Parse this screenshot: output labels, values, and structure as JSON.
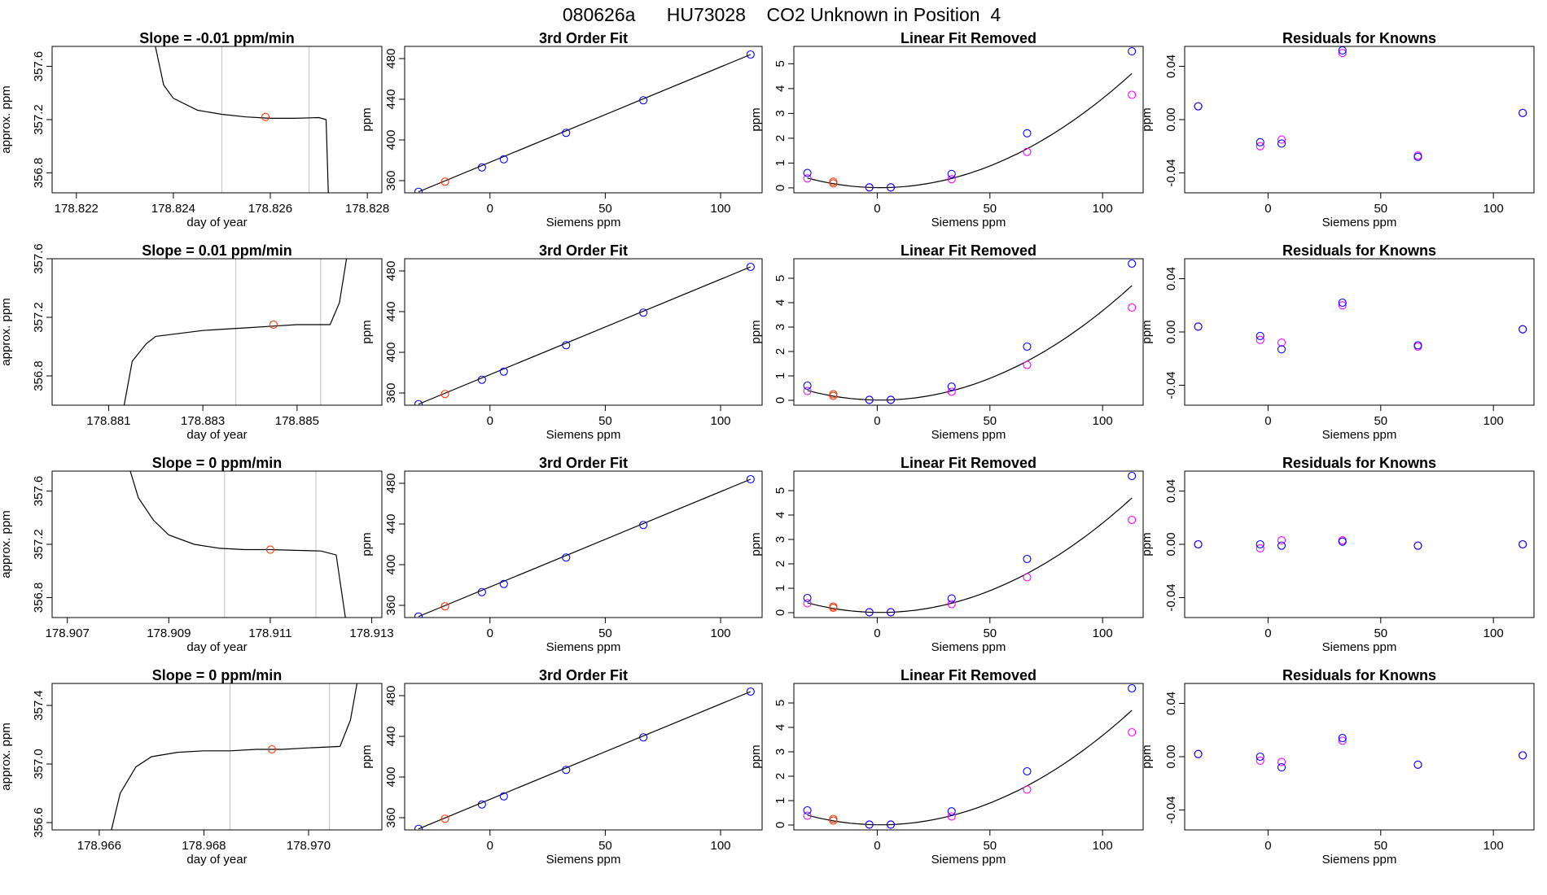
{
  "page_title": "080626a      HU73028    CO2 Unknown in Position  4",
  "colors": {
    "known_points": "#0000ff",
    "residual_points": "#ff00ff",
    "unknown_point": "#ff3300",
    "line": "#000000",
    "vertical_markers": "#bfbfbf"
  },
  "chart_data": [
    {
      "type": "line",
      "title": "Slope =  -0.01  ppm/min",
      "xlabel": "day of year",
      "ylabel": "approx. ppm",
      "xlim": [
        178.8215,
        178.8283
      ],
      "ylim": [
        356.65,
        357.75
      ],
      "xticks": [
        178.822,
        178.824,
        178.826,
        178.828
      ],
      "xtick_labels": [
        "178.822",
        "178.824",
        "178.826",
        "178.828"
      ],
      "yticks": [
        356.8,
        357.2,
        357.6
      ],
      "ytick_labels": [
        "356.8",
        "357.2",
        "357.6"
      ],
      "vlines": [
        178.825,
        178.8268
      ],
      "trace": {
        "x": [
          178.8236,
          178.8238,
          178.824,
          178.8245,
          178.825,
          178.8255,
          178.826,
          178.8265,
          178.827,
          178.82715,
          178.8272
        ],
        "y": [
          357.8,
          357.46,
          357.36,
          357.27,
          357.24,
          357.22,
          357.21,
          357.21,
          357.215,
          357.2,
          356.6
        ]
      },
      "unknown_point": {
        "x": 178.8259,
        "y": 357.22
      }
    },
    {
      "type": "scatter",
      "title": "3rd Order Fit",
      "xlabel": "Siemens ppm",
      "ylabel": "ppm",
      "xlim": [
        -37,
        118
      ],
      "ylim": [
        348,
        492
      ],
      "xticks": [
        0,
        50,
        100
      ],
      "xtick_labels": [
        "0",
        "50",
        "100"
      ],
      "yticks": [
        360,
        400,
        440,
        480
      ],
      "ytick_labels": [
        "360",
        "400",
        "440",
        "480"
      ],
      "known": {
        "x": [
          -31,
          -3.5,
          6,
          33,
          66.5,
          113
        ],
        "y": [
          349,
          373,
          381,
          407,
          439,
          484
        ]
      },
      "unknown": {
        "x": [
          -19.5
        ],
        "y": [
          359
        ]
      },
      "fit": {
        "x": [
          -31,
          113
        ],
        "y": [
          349,
          484
        ]
      }
    },
    {
      "type": "scatter",
      "title": "Linear Fit Removed",
      "xlabel": "Siemens ppm",
      "ylabel": "ppm",
      "xlim": [
        -37,
        118
      ],
      "ylim": [
        -0.2,
        5.7
      ],
      "xticks": [
        0,
        50,
        100
      ],
      "xtick_labels": [
        "0",
        "50",
        "100"
      ],
      "yticks": [
        0,
        1,
        2,
        3,
        4,
        5
      ],
      "ytick_labels": [
        "0",
        "1",
        "2",
        "3",
        "4",
        "5"
      ],
      "known": {
        "x": [
          -31,
          -3.5,
          6,
          33,
          66.5,
          113
        ],
        "y": [
          0.6,
          0.02,
          0.02,
          0.56,
          2.2,
          5.5
        ]
      },
      "residual": {
        "x": [
          -31,
          -3.5,
          6,
          33,
          66.5,
          113
        ],
        "y": [
          0.38,
          0.02,
          0.02,
          0.35,
          1.45,
          3.75
        ]
      },
      "unknown": {
        "x": [
          -19.5,
          -19.5
        ],
        "y": [
          0.25,
          0.18
        ]
      },
      "curve": {
        "a": 0.000369,
        "b": -0.001,
        "c": 0.01
      }
    },
    {
      "type": "scatter",
      "title": "Residuals for Knowns",
      "xlabel": "Siemens ppm",
      "ylabel": "ppm",
      "xlim": [
        -37,
        118
      ],
      "ylim": [
        -0.055,
        0.055
      ],
      "xticks": [
        0,
        50,
        100
      ],
      "xtick_labels": [
        "0",
        "50",
        "100"
      ],
      "yticks": [
        -0.04,
        0,
        0.04
      ],
      "ytick_labels": [
        "-0.04",
        "0.00",
        "0.04"
      ],
      "known": {
        "x": [
          -31,
          -3.5,
          6,
          33,
          66.5,
          113
        ],
        "y": [
          0.01,
          -0.017,
          -0.018,
          0.052,
          -0.028,
          0.005
        ]
      },
      "residual": {
        "x": [
          -31,
          -3.5,
          6,
          33,
          66.5,
          113
        ],
        "y": [
          0.01,
          -0.02,
          -0.015,
          0.05,
          -0.027,
          0.005
        ]
      }
    },
    {
      "type": "line",
      "title": "Slope =  0.01  ppm/min",
      "xlabel": "day of year",
      "ylabel": "approx. ppm",
      "xlim": [
        178.8798,
        178.8868
      ],
      "ylim": [
        356.6,
        357.6
      ],
      "xticks": [
        178.881,
        178.883,
        178.885
      ],
      "xtick_labels": [
        "178.881",
        "178.883",
        "178.885"
      ],
      "yticks": [
        356.8,
        357.2,
        357.6
      ],
      "ytick_labels": [
        "356.8",
        "357.2",
        "357.6"
      ],
      "vlines": [
        178.8837,
        178.8855
      ],
      "trace": {
        "x": [
          178.8813,
          178.8815,
          178.8818,
          178.882,
          178.8825,
          178.883,
          178.8835,
          178.884,
          178.8845,
          178.885,
          178.8857,
          178.8859,
          178.8861
        ],
        "y": [
          356.55,
          356.9,
          357.02,
          357.07,
          357.09,
          357.11,
          357.12,
          357.13,
          357.14,
          357.15,
          357.15,
          357.3,
          357.7
        ]
      },
      "unknown_point": {
        "x": 178.8845,
        "y": 357.15
      }
    },
    {
      "type": "scatter",
      "title": "3rd Order Fit",
      "xlabel": "Siemens ppm",
      "ylabel": "ppm",
      "xlim": [
        -37,
        118
      ],
      "ylim": [
        348,
        492
      ],
      "xticks": [
        0,
        50,
        100
      ],
      "xtick_labels": [
        "0",
        "50",
        "100"
      ],
      "yticks": [
        360,
        400,
        440,
        480
      ],
      "ytick_labels": [
        "360",
        "400",
        "440",
        "480"
      ],
      "known": {
        "x": [
          -31,
          -3.5,
          6,
          33,
          66.5,
          113
        ],
        "y": [
          349,
          373,
          381,
          407,
          439,
          484
        ]
      },
      "unknown": {
        "x": [
          -19.5
        ],
        "y": [
          359
        ]
      },
      "fit": {
        "x": [
          -31,
          113
        ],
        "y": [
          349,
          484
        ]
      }
    },
    {
      "type": "scatter",
      "title": "Linear Fit Removed",
      "xlabel": "Siemens ppm",
      "ylabel": "ppm",
      "xlim": [
        -37,
        118
      ],
      "ylim": [
        -0.2,
        5.8
      ],
      "xticks": [
        0,
        50,
        100
      ],
      "xtick_labels": [
        "0",
        "50",
        "100"
      ],
      "yticks": [
        0,
        1,
        2,
        3,
        4,
        5
      ],
      "ytick_labels": [
        "0",
        "1",
        "2",
        "3",
        "4",
        "5"
      ],
      "known": {
        "x": [
          -31,
          -3.5,
          6,
          33,
          66.5,
          113
        ],
        "y": [
          0.6,
          0.02,
          0.02,
          0.56,
          2.2,
          5.6
        ]
      },
      "residual": {
        "x": [
          -31,
          -3.5,
          6,
          33,
          66.5,
          113
        ],
        "y": [
          0.38,
          0.02,
          0.02,
          0.35,
          1.45,
          3.8
        ]
      },
      "unknown": {
        "x": [
          -19.5,
          -19.5
        ],
        "y": [
          0.25,
          0.18
        ]
      },
      "curve": {
        "a": 0.000376,
        "b": -0.001,
        "c": 0.01
      }
    },
    {
      "type": "scatter",
      "title": "Residuals for Knowns",
      "xlabel": "Siemens ppm",
      "ylabel": "ppm",
      "xlim": [
        -37,
        118
      ],
      "ylim": [
        -0.055,
        0.055
      ],
      "xticks": [
        0,
        50,
        100
      ],
      "xtick_labels": [
        "0",
        "50",
        "100"
      ],
      "yticks": [
        -0.04,
        0,
        0.04
      ],
      "ytick_labels": [
        "-0.04",
        "0.00",
        "0.04"
      ],
      "known": {
        "x": [
          -31,
          -3.5,
          6,
          33,
          66.5,
          113
        ],
        "y": [
          0.004,
          -0.003,
          -0.013,
          0.022,
          -0.01,
          0.002
        ]
      },
      "residual": {
        "x": [
          -31,
          -3.5,
          6,
          33,
          66.5,
          113
        ],
        "y": [
          0.004,
          -0.006,
          -0.008,
          0.02,
          -0.011,
          0.002
        ]
      }
    },
    {
      "type": "line",
      "title": "Slope =  0  ppm/min",
      "xlabel": "day of year",
      "ylabel": "approx. ppm",
      "xlim": [
        178.9067,
        178.9132
      ],
      "ylim": [
        356.65,
        357.75
      ],
      "xticks": [
        178.907,
        178.909,
        178.911,
        178.913
      ],
      "xtick_labels": [
        "178.907",
        "178.909",
        "178.911",
        "178.913"
      ],
      "yticks": [
        356.8,
        357.2,
        357.6
      ],
      "ytick_labels": [
        "356.8",
        "357.2",
        "357.6"
      ],
      "vlines": [
        178.9101,
        178.9119
      ],
      "trace": {
        "x": [
          178.9082,
          178.9084,
          178.9087,
          178.909,
          178.9095,
          178.91,
          178.9105,
          178.911,
          178.9115,
          178.912,
          178.9123,
          178.9125
        ],
        "y": [
          357.8,
          357.55,
          357.38,
          357.27,
          357.2,
          357.17,
          357.16,
          357.16,
          357.155,
          357.15,
          357.12,
          356.6
        ]
      },
      "unknown_point": {
        "x": 178.911,
        "y": 357.16
      }
    },
    {
      "type": "scatter",
      "title": "3rd Order Fit",
      "xlabel": "Siemens ppm",
      "ylabel": "ppm",
      "xlim": [
        -37,
        118
      ],
      "ylim": [
        348,
        492
      ],
      "xticks": [
        0,
        50,
        100
      ],
      "xtick_labels": [
        "0",
        "50",
        "100"
      ],
      "yticks": [
        360,
        400,
        440,
        480
      ],
      "ytick_labels": [
        "360",
        "400",
        "440",
        "480"
      ],
      "known": {
        "x": [
          -31,
          -3.5,
          6,
          33,
          66.5,
          113
        ],
        "y": [
          349,
          373,
          381,
          407,
          439,
          484
        ]
      },
      "unknown": {
        "x": [
          -19.5
        ],
        "y": [
          359
        ]
      },
      "fit": {
        "x": [
          -31,
          113
        ],
        "y": [
          349,
          484
        ]
      }
    },
    {
      "type": "scatter",
      "title": "Linear Fit Removed",
      "xlabel": "Siemens ppm",
      "ylabel": "ppm",
      "xlim": [
        -37,
        118
      ],
      "ylim": [
        -0.2,
        5.8
      ],
      "xticks": [
        0,
        50,
        100
      ],
      "xtick_labels": [
        "0",
        "50",
        "100"
      ],
      "yticks": [
        0,
        1,
        2,
        3,
        4,
        5
      ],
      "ytick_labels": [
        "0",
        "1",
        "2",
        "3",
        "4",
        "5"
      ],
      "known": {
        "x": [
          -31,
          -3.5,
          6,
          33,
          66.5,
          113
        ],
        "y": [
          0.6,
          0.02,
          0.02,
          0.58,
          2.2,
          5.6
        ]
      },
      "residual": {
        "x": [
          -31,
          -3.5,
          6,
          33,
          66.5,
          113
        ],
        "y": [
          0.38,
          0.02,
          0.02,
          0.35,
          1.45,
          3.8
        ]
      },
      "unknown": {
        "x": [
          -19.5,
          -19.5
        ],
        "y": [
          0.25,
          0.2
        ]
      },
      "curve": {
        "a": 0.000376,
        "b": -0.001,
        "c": 0.01
      }
    },
    {
      "type": "scatter",
      "title": "Residuals for Knowns",
      "xlabel": "Siemens ppm",
      "ylabel": "ppm",
      "xlim": [
        -37,
        118
      ],
      "ylim": [
        -0.055,
        0.055
      ],
      "xticks": [
        0,
        50,
        100
      ],
      "xtick_labels": [
        "0",
        "50",
        "100"
      ],
      "yticks": [
        -0.04,
        0,
        0.04
      ],
      "ytick_labels": [
        "-0.04",
        "0.00",
        "0.04"
      ],
      "known": {
        "x": [
          -31,
          -3.5,
          6,
          33,
          66.5,
          113
        ],
        "y": [
          0.0,
          0.0,
          -0.001,
          0.002,
          -0.001,
          0.0
        ]
      },
      "residual": {
        "x": [
          -31,
          -3.5,
          6,
          33,
          66.5,
          113
        ],
        "y": [
          0.0,
          -0.003,
          0.003,
          0.003,
          -0.001,
          0.0
        ]
      }
    },
    {
      "type": "line",
      "title": "Slope =  0  ppm/min",
      "xlabel": "day of year",
      "ylabel": "approx. ppm",
      "xlim": [
        178.9651,
        178.9714
      ],
      "ylim": [
        356.55,
        357.55
      ],
      "xticks": [
        178.966,
        178.968,
        178.97
      ],
      "xtick_labels": [
        "178.966",
        "178.968",
        "178.970"
      ],
      "yticks": [
        356.6,
        357.0,
        357.4
      ],
      "ytick_labels": [
        "356.6",
        "357.0",
        "357.4"
      ],
      "vlines": [
        178.9685,
        178.9704
      ],
      "trace": {
        "x": [
          178.9662,
          178.9664,
          178.9667,
          178.967,
          178.9675,
          178.968,
          178.9685,
          178.969,
          178.9695,
          178.97,
          178.9706,
          178.9708,
          178.971
        ],
        "y": [
          356.5,
          356.8,
          356.98,
          357.05,
          357.08,
          357.09,
          357.09,
          357.1,
          357.1,
          357.11,
          357.12,
          357.3,
          357.7
        ]
      },
      "unknown_point": {
        "x": 178.9693,
        "y": 357.1
      }
    },
    {
      "type": "scatter",
      "title": "3rd Order Fit",
      "xlabel": "Siemens ppm",
      "ylabel": "ppm",
      "xlim": [
        -37,
        118
      ],
      "ylim": [
        348,
        492
      ],
      "xticks": [
        0,
        50,
        100
      ],
      "xtick_labels": [
        "0",
        "50",
        "100"
      ],
      "yticks": [
        360,
        400,
        440,
        480
      ],
      "ytick_labels": [
        "360",
        "400",
        "440",
        "480"
      ],
      "known": {
        "x": [
          -31,
          -3.5,
          6,
          33,
          66.5,
          113
        ],
        "y": [
          349,
          373,
          381,
          407,
          439,
          484
        ]
      },
      "unknown": {
        "x": [
          -19.5
        ],
        "y": [
          359
        ]
      },
      "fit": {
        "x": [
          -31,
          113
        ],
        "y": [
          349,
          484
        ]
      }
    },
    {
      "type": "scatter",
      "title": "Linear Fit Removed",
      "xlabel": "Siemens ppm",
      "ylabel": "ppm",
      "xlim": [
        -37,
        118
      ],
      "ylim": [
        -0.2,
        5.8
      ],
      "xticks": [
        0,
        50,
        100
      ],
      "xtick_labels": [
        "0",
        "50",
        "100"
      ],
      "yticks": [
        0,
        1,
        2,
        3,
        4,
        5
      ],
      "ytick_labels": [
        "0",
        "1",
        "2",
        "3",
        "4",
        "5"
      ],
      "known": {
        "x": [
          -31,
          -3.5,
          6,
          33,
          66.5,
          113
        ],
        "y": [
          0.6,
          0.02,
          0.02,
          0.56,
          2.2,
          5.6
        ]
      },
      "residual": {
        "x": [
          -31,
          -3.5,
          6,
          33,
          66.5,
          113
        ],
        "y": [
          0.38,
          0.02,
          0.02,
          0.35,
          1.45,
          3.8
        ]
      },
      "unknown": {
        "x": [
          -19.5,
          -19.5
        ],
        "y": [
          0.25,
          0.18
        ]
      },
      "curve": {
        "a": 0.000376,
        "b": -0.001,
        "c": 0.01
      }
    },
    {
      "type": "scatter",
      "title": "Residuals for Knowns",
      "xlabel": "Siemens ppm",
      "ylabel": "ppm",
      "xlim": [
        -37,
        118
      ],
      "ylim": [
        -0.055,
        0.055
      ],
      "xticks": [
        0,
        50,
        100
      ],
      "xtick_labels": [
        "0",
        "50",
        "100"
      ],
      "yticks": [
        -0.04,
        0,
        0.04
      ],
      "ytick_labels": [
        "-0.04",
        "0.00",
        "0.04"
      ],
      "known": {
        "x": [
          -31,
          -3.5,
          6,
          33,
          66.5,
          113
        ],
        "y": [
          0.002,
          0.0,
          -0.008,
          0.014,
          -0.006,
          0.001
        ]
      },
      "residual": {
        "x": [
          -31,
          -3.5,
          6,
          33,
          66.5,
          113
        ],
        "y": [
          0.002,
          -0.003,
          -0.004,
          0.012,
          -0.006,
          0.001
        ]
      }
    }
  ]
}
